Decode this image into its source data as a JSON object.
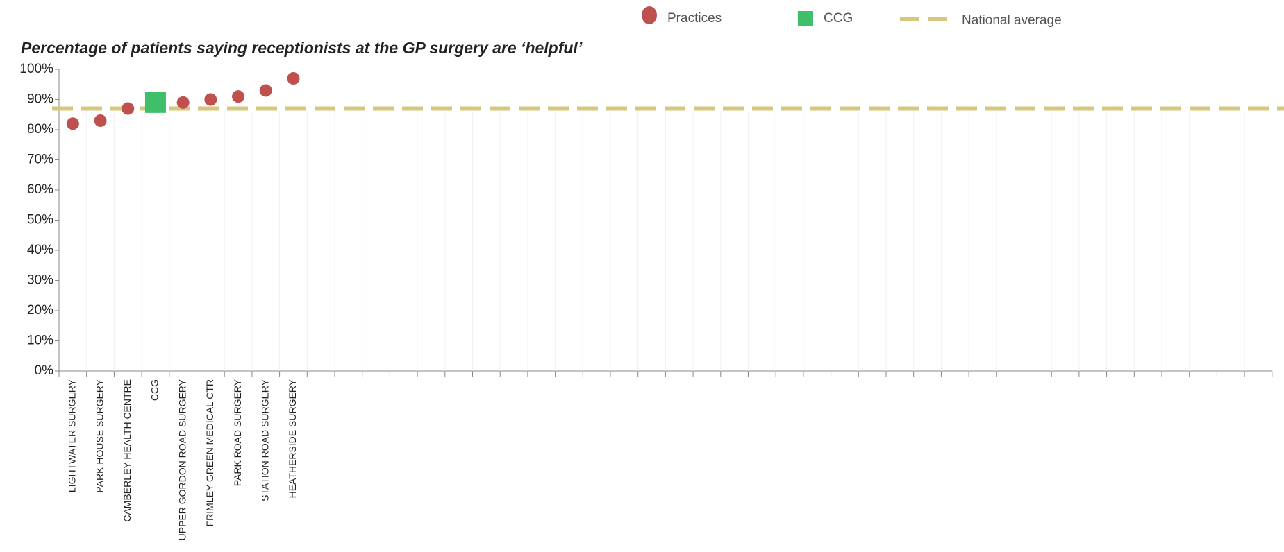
{
  "chart_data": {
    "type": "dot",
    "title": "Percentage of patients saying receptionists at the GP surgery are ‘helpful’",
    "categories": [
      "LIGHTWATER SURGERY",
      "PARK HOUSE SURGERY",
      "CAMBERLEY HEALTH CENTRE",
      "CCG",
      "UPPER GORDON ROAD SURGERY",
      "FRIMLEY GREEN MEDICAL CTR",
      "PARK ROAD SURGERY",
      "STATION ROAD SURGERY",
      "HEATHERSIDE SURGERY",
      null,
      null,
      null,
      null,
      null,
      null,
      null,
      null,
      null,
      null,
      null,
      null,
      null,
      null,
      null,
      null,
      null,
      null,
      null,
      null,
      null,
      null,
      null,
      null,
      null,
      null,
      null,
      null,
      null,
      null,
      null,
      null,
      null,
      null,
      null
    ],
    "series": [
      {
        "name": "Practices",
        "color": "#c0504d",
        "marker": "circle",
        "values": [
          82,
          83,
          87,
          null,
          89,
          90,
          91,
          93,
          97,
          null,
          null,
          null,
          null,
          null,
          null,
          null,
          null,
          null,
          null,
          null,
          null,
          null,
          null,
          null,
          null,
          null,
          null,
          null,
          null,
          null,
          null,
          null,
          null,
          null,
          null,
          null,
          null,
          null,
          null,
          null,
          null,
          null,
          null,
          null
        ]
      },
      {
        "name": "CCG",
        "color": "#3fbf6a",
        "marker": "square",
        "values": [
          null,
          null,
          null,
          89,
          null,
          null,
          null,
          null,
          null,
          null,
          null,
          null,
          null,
          null,
          null,
          null,
          null,
          null,
          null,
          null,
          null,
          null,
          null,
          null,
          null,
          null,
          null,
          null,
          null,
          null,
          null,
          null,
          null,
          null,
          null,
          null,
          null,
          null,
          null,
          null,
          null,
          null,
          null,
          null
        ]
      }
    ],
    "reference_line": {
      "name": "National average",
      "value": 87,
      "color": "#d6c77d"
    },
    "ylim": [
      0,
      100
    ],
    "yticks": [
      {
        "value": 0,
        "label": "0%"
      },
      {
        "value": 10,
        "label": "10%"
      },
      {
        "value": 20,
        "label": "20%"
      },
      {
        "value": 30,
        "label": "30%"
      },
      {
        "value": 40,
        "label": "40%"
      },
      {
        "value": 50,
        "label": "50%"
      },
      {
        "value": 60,
        "label": "60%"
      },
      {
        "value": 70,
        "label": "70%"
      },
      {
        "value": 80,
        "label": "80%"
      },
      {
        "value": 90,
        "label": "90%"
      },
      {
        "value": 100,
        "label": "100%"
      }
    ]
  }
}
